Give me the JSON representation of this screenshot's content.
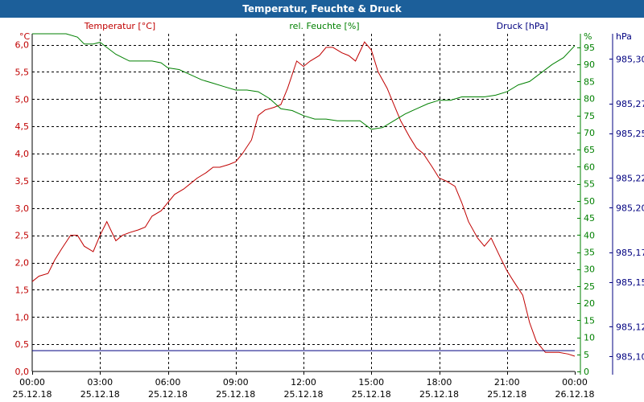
{
  "window": {
    "title": "Temperatur, Feuchte & Druck"
  },
  "colors": {
    "temperature": "#c00000",
    "humidity": "#008000",
    "pressure": "#000080",
    "title_bar": "#1c5f9a",
    "grid": "#000000"
  },
  "chart_data": {
    "type": "line",
    "title": "Temperatur, Feuchte & Druck",
    "grid": true,
    "x_range": [
      "25.12.18 00:00",
      "26.12.18 00:00"
    ],
    "x_ticks": [
      {
        "time": "00:00",
        "date": "25.12.18"
      },
      {
        "time": "03:00",
        "date": "25.12.18"
      },
      {
        "time": "06:00",
        "date": "25.12.18"
      },
      {
        "time": "09:00",
        "date": "25.12.18"
      },
      {
        "time": "12:00",
        "date": "25.12.18"
      },
      {
        "time": "15:00",
        "date": "25.12.18"
      },
      {
        "time": "18:00",
        "date": "25.12.18"
      },
      {
        "time": "21:00",
        "date": "25.12.18"
      },
      {
        "time": "00:00",
        "date": "26.12.18"
      }
    ],
    "axes": {
      "temperature": {
        "unit": "°C",
        "legend": "Temperatur [°C]",
        "ylim": [
          0,
          6.2
        ],
        "ticks": [
          "0,0",
          "0,5",
          "1,0",
          "1,5",
          "2,0",
          "2,5",
          "3,0",
          "3,5",
          "4,0",
          "4,5",
          "5,0",
          "5,5",
          "6,0"
        ]
      },
      "humidity": {
        "unit": "%",
        "legend": "rel. Feuchte [%]",
        "ylim": [
          0,
          99
        ],
        "ticks": [
          "0",
          "5",
          "10",
          "15",
          "20",
          "25",
          "30",
          "35",
          "40",
          "45",
          "50",
          "55",
          "60",
          "65",
          "70",
          "75",
          "80",
          "85",
          "90",
          "95"
        ]
      },
      "pressure": {
        "unit": "hPa",
        "legend": "Druck [hPa]",
        "ylim": [
          985.09,
          985.317
        ],
        "ticks": [
          "985,10",
          "985,12",
          "985,15",
          "985,17",
          "985,20",
          "985,22",
          "985,25",
          "985,27",
          "985,30"
        ]
      }
    },
    "series": [
      {
        "name": "Temperatur [°C]",
        "axis": "temperature",
        "x_hours": [
          0,
          0.3,
          0.7,
          1,
          1.3,
          1.7,
          2,
          2.3,
          2.7,
          3,
          3.3,
          3.7,
          4,
          4.3,
          4.7,
          5,
          5.3,
          5.7,
          6,
          6.3,
          6.7,
          7,
          7.3,
          7.7,
          8,
          8.3,
          8.7,
          9,
          9.3,
          9.7,
          10,
          10.3,
          10.7,
          11,
          11.3,
          11.7,
          12,
          12.3,
          12.7,
          13,
          13.3,
          13.7,
          14,
          14.3,
          14.7,
          15,
          15.3,
          15.7,
          16,
          16.3,
          16.7,
          17,
          17.3,
          17.7,
          18,
          18.3,
          18.7,
          19,
          19.3,
          19.7,
          20,
          20.3,
          20.7,
          21,
          21.3,
          21.7,
          22,
          22.3,
          22.7,
          23,
          23.3,
          23.7,
          24
        ],
        "values": [
          1.65,
          1.75,
          1.8,
          2.05,
          2.25,
          2.5,
          2.5,
          2.3,
          2.2,
          2.5,
          2.75,
          2.4,
          2.5,
          2.55,
          2.6,
          2.65,
          2.85,
          2.95,
          3.1,
          3.25,
          3.35,
          3.45,
          3.55,
          3.65,
          3.75,
          3.75,
          3.8,
          3.85,
          4.0,
          4.25,
          4.7,
          4.8,
          4.85,
          4.9,
          5.2,
          5.7,
          5.6,
          5.7,
          5.8,
          5.95,
          5.95,
          5.85,
          5.8,
          5.7,
          6.05,
          5.9,
          5.5,
          5.2,
          4.9,
          4.6,
          4.3,
          4.1,
          4.0,
          3.75,
          3.55,
          3.5,
          3.4,
          3.1,
          2.75,
          2.45,
          2.3,
          2.45,
          2.1,
          1.85,
          1.65,
          1.4,
          0.9,
          0.55,
          0.35,
          0.35,
          0.35,
          0.32,
          0.28
        ]
      },
      {
        "name": "rel. Feuchte [%]",
        "axis": "humidity",
        "x_hours": [
          0,
          0.5,
          1,
          1.5,
          2,
          2.3,
          2.7,
          3,
          3.3,
          3.7,
          4,
          4.3,
          4.7,
          5,
          5.3,
          5.7,
          6,
          6.5,
          7,
          7.5,
          8,
          8.5,
          9,
          9.5,
          10,
          10.5,
          11,
          11.5,
          12,
          12.5,
          13,
          13.5,
          14,
          14.5,
          15,
          15.5,
          16,
          16.5,
          17,
          17.5,
          18,
          18.5,
          19,
          19.5,
          20,
          20.5,
          21,
          21.5,
          22,
          22.5,
          23,
          23.5,
          24
        ],
        "values": [
          99,
          99,
          99,
          99,
          98,
          96,
          96,
          96.5,
          95,
          93,
          92,
          91,
          91,
          91,
          91,
          90.5,
          89,
          88.5,
          87,
          85.5,
          84.5,
          83.5,
          82.5,
          82.5,
          82,
          80,
          77,
          76.5,
          75,
          74,
          74,
          73.5,
          73.5,
          73.5,
          71,
          71.5,
          73.5,
          75.5,
          77,
          78.5,
          79.5,
          79.5,
          80.5,
          80.5,
          80.5,
          81,
          82,
          84,
          85,
          87.5,
          90,
          92,
          95.5
        ]
      },
      {
        "name": "Druck [hPa]",
        "axis": "pressure",
        "x_hours": [
          0,
          24
        ],
        "values": [
          985.104,
          985.104
        ]
      }
    ]
  }
}
